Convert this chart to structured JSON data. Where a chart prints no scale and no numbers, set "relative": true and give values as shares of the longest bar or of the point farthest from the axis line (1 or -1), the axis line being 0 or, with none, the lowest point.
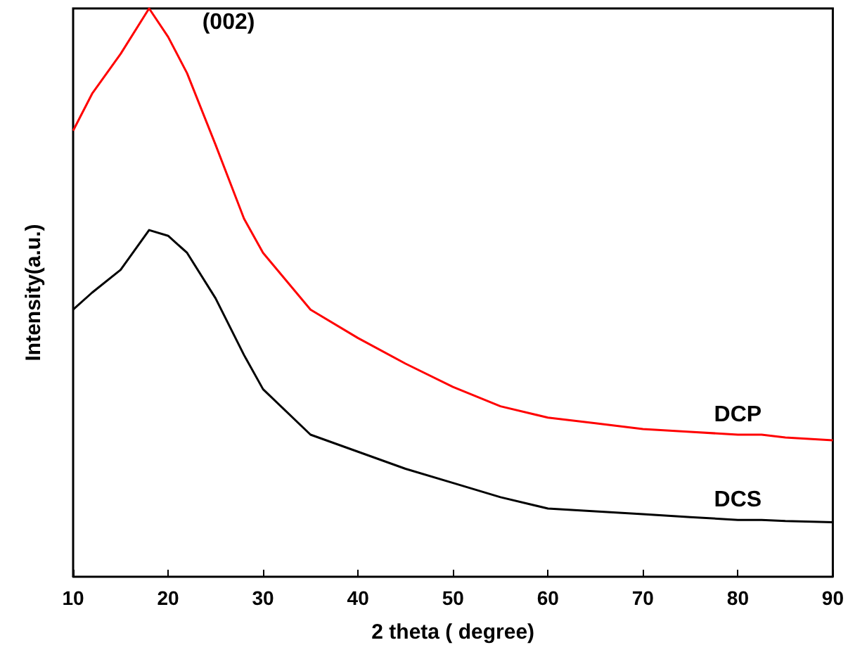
{
  "chart_data": {
    "type": "line",
    "relative": true,
    "xlabel": "2 theta ( degree)",
    "ylabel": "Intensity(a.u.)",
    "xlim": [
      10,
      90
    ],
    "xticks": [
      10,
      20,
      30,
      40,
      50,
      60,
      70,
      80,
      90
    ],
    "tick_labels": "x",
    "marker": "none",
    "line_style": "solid",
    "annotations": [
      "(002)"
    ],
    "x": [
      10,
      12,
      15,
      18,
      20,
      22,
      25,
      28,
      30,
      35,
      40,
      45,
      50,
      55,
      60,
      65,
      70,
      75,
      80,
      82.5,
      85,
      90
    ],
    "series": [
      {
        "name": "DCP",
        "color": "#ff0000",
        "values": [
          0.785,
          0.85,
          0.92,
          1,
          0.95,
          0.886,
          0.76,
          0.63,
          0.57,
          0.47,
          0.42,
          0.375,
          0.334,
          0.3,
          0.28,
          0.27,
          0.26,
          0.255,
          0.25,
          0.25,
          0.245,
          0.24
        ]
      },
      {
        "name": "DCS",
        "color": "#000000",
        "values": [
          0.47,
          0.5,
          0.54,
          0.61,
          0.6,
          0.57,
          0.49,
          0.39,
          0.33,
          0.25,
          0.22,
          0.19,
          0.165,
          0.14,
          0.12,
          0.115,
          0.11,
          0.105,
          0.1,
          0.1,
          0.098,
          0.096
        ]
      }
    ]
  }
}
